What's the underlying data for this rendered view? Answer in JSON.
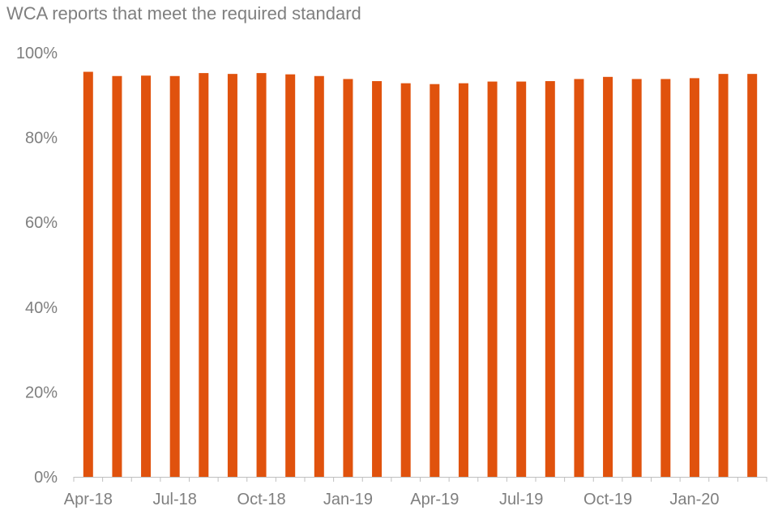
{
  "chart_data": {
    "type": "bar",
    "title": "WCA reports that meet the required standard",
    "categories": [
      "Apr-18",
      "May-18",
      "Jun-18",
      "Jul-18",
      "Aug-18",
      "Sep-18",
      "Oct-18",
      "Nov-18",
      "Dec-18",
      "Jan-19",
      "Feb-19",
      "Mar-19",
      "Apr-19",
      "May-19",
      "Jun-19",
      "Jul-19",
      "Aug-19",
      "Sep-19",
      "Oct-19",
      "Nov-19",
      "Dec-19",
      "Jan-20",
      "Feb-20",
      "Mar-20"
    ],
    "x_tick_labels": [
      "Apr-18",
      "Jul-18",
      "Oct-18",
      "Jan-19",
      "Apr-19",
      "Jul-19",
      "Oct-19",
      "Jan-20"
    ],
    "series": [
      {
        "values": [
          95.5,
          94.5,
          94.6,
          94.5,
          95.2,
          95.0,
          95.2,
          94.9,
          94.5,
          93.8,
          93.3,
          92.8,
          92.6,
          92.8,
          93.2,
          93.2,
          93.3,
          93.8,
          94.3,
          93.8,
          93.8,
          94.0,
          95.0,
          95.0
        ]
      }
    ],
    "ylim": [
      0,
      100
    ],
    "y_ticks": [
      0,
      20,
      40,
      60,
      80,
      100
    ],
    "y_tick_format": "%",
    "xlabel": "",
    "ylabel": "",
    "grid": false,
    "legend": "none",
    "colors": {
      "bar": "#E0520D",
      "axis": "#bfbfbf",
      "text": "#7f7f7f"
    }
  }
}
